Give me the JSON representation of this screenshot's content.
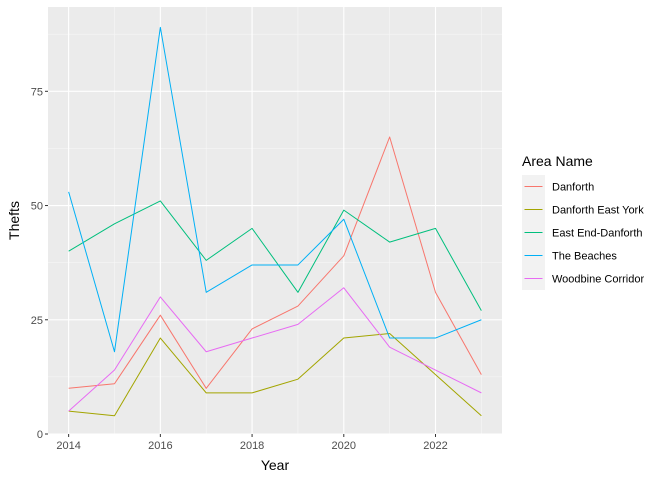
{
  "chart_data": {
    "type": "line",
    "title": "",
    "xlabel": "Year",
    "ylabel": "Thefts",
    "x": [
      2014,
      2015,
      2016,
      2017,
      2018,
      2019,
      2020,
      2021,
      2022,
      2023
    ],
    "xlim": [
      2013.55,
      2023.45
    ],
    "ylim": [
      0,
      93.45
    ],
    "x_ticks": [
      "2014",
      "2016",
      "2018",
      "2020",
      "2022"
    ],
    "y_ticks": [
      "0",
      "25",
      "50",
      "75"
    ],
    "grid": true,
    "legend": {
      "title": "Area Name",
      "position": "right"
    },
    "series": [
      {
        "name": "Danforth",
        "color": "#F8766D",
        "values": [
          10,
          11,
          26,
          10,
          23,
          28,
          39,
          65,
          31,
          13
        ]
      },
      {
        "name": "Danforth East York",
        "color": "#A3A500",
        "values": [
          5,
          4,
          21,
          9,
          9,
          12,
          21,
          22,
          13,
          4
        ]
      },
      {
        "name": "East End-Danforth",
        "color": "#00BF7D",
        "values": [
          40,
          46,
          51,
          38,
          45,
          31,
          49,
          42,
          45,
          27
        ]
      },
      {
        "name": "The Beaches",
        "color": "#00B0F6",
        "values": [
          53,
          18,
          89,
          31,
          37,
          37,
          47,
          21,
          21,
          25
        ]
      },
      {
        "name": "Woodbine Corridor",
        "color": "#E76BF3",
        "values": [
          5,
          14,
          30,
          18,
          21,
          24,
          32,
          19,
          14,
          9
        ]
      }
    ]
  }
}
